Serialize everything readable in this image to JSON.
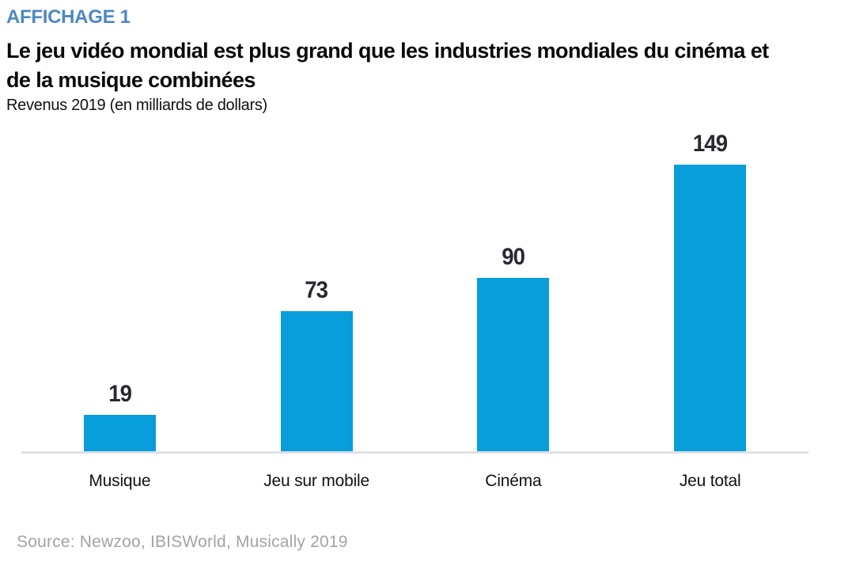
{
  "header": {
    "kicker": "AFFICHAGE 1",
    "title_line1": "Le jeu vidéo mondial est plus grand que les industries mondiales du cinéma et",
    "title_line2": "de la musique combinées",
    "subtitle": "Revenus 2019 (en milliards de dollars)"
  },
  "chart_data": {
    "type": "bar",
    "title": "Le jeu vidéo mondial est plus grand que les industries mondiales du cinéma et de la musique combinées",
    "subtitle": "Revenus 2019 (en milliards de dollars)",
    "categories": [
      "Musique",
      "Jeu sur mobile",
      "Cinéma",
      "Jeu total"
    ],
    "values": [
      19,
      73,
      90,
      149
    ],
    "xlabel": "",
    "ylabel": "",
    "ylim": [
      0,
      160
    ],
    "grid": false,
    "legend": false,
    "bar_color": "#089DDB",
    "value_label_color": "#2A2730",
    "axis_line_color": "#E0E0E7"
  },
  "footer": {
    "source": "Source: Newzoo, IBISWorld, Musically 2019"
  },
  "colors": {
    "kicker_blue": "#4E87C4",
    "title_black": "#0a0a0a",
    "source_gray": "#A3A3A3"
  }
}
